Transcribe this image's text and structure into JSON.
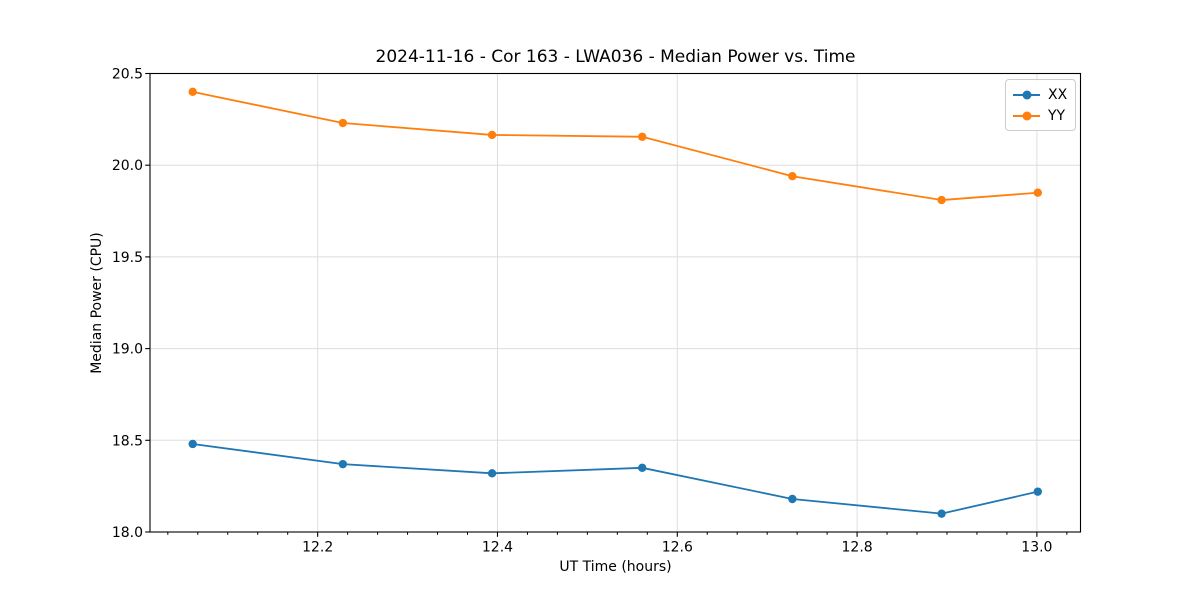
{
  "chart_data": {
    "type": "line",
    "title": "2024-11-16 - Cor 163 - LWA036 - Median Power vs. Time",
    "xlabel": "UT Time (hours)",
    "ylabel": "Median Power (CPU)",
    "x": [
      12.061,
      12.228,
      12.394,
      12.561,
      12.728,
      12.894,
      13.001
    ],
    "series": [
      {
        "name": "XX",
        "color": "#1f77b4",
        "marker": "circle",
        "values": [
          18.48,
          18.37,
          18.32,
          18.35,
          18.18,
          18.1,
          18.22
        ]
      },
      {
        "name": "YY",
        "color": "#ff7f0e",
        "marker": "circle",
        "values": [
          20.4,
          20.23,
          20.165,
          20.155,
          19.94,
          19.81,
          19.85
        ]
      }
    ],
    "xlim": [
      12.0135,
      13.0485
    ],
    "ylim": [
      18.0,
      20.5
    ],
    "xticks": [
      12.2,
      12.4,
      12.6,
      12.8,
      13.0
    ],
    "yticks": [
      18.0,
      18.5,
      19.0,
      19.5,
      20.0,
      20.5
    ],
    "x_minor_tick_step": 0.0333333,
    "tick_label_decimals": 1,
    "grid": true,
    "grid_color": "#dedede",
    "axes_color": "#000000",
    "legend": {
      "position": "upper right"
    }
  }
}
